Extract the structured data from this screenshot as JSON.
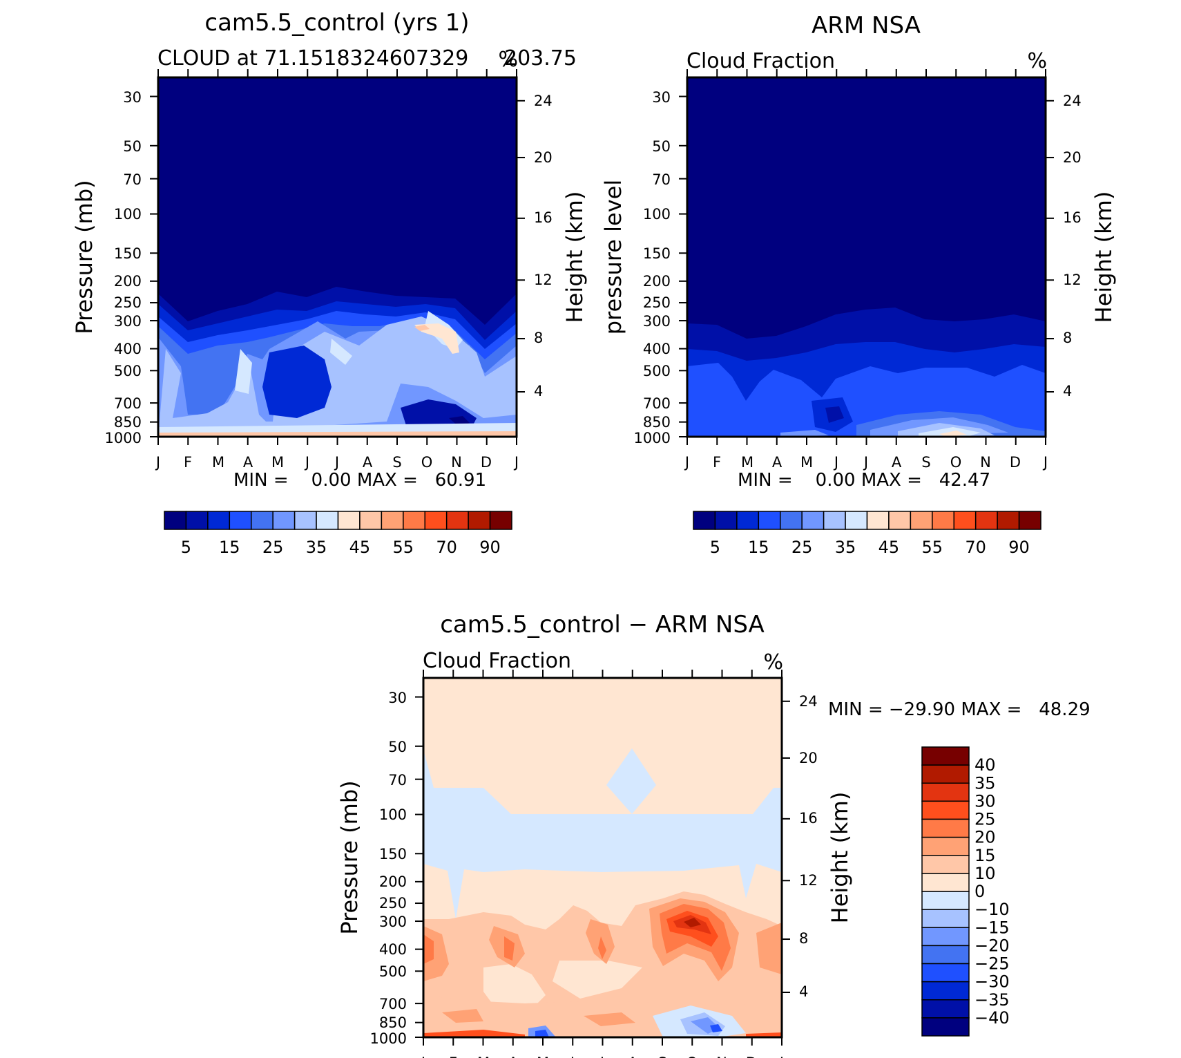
{
  "chart_data": [
    {
      "type": "heatmap",
      "id": "model",
      "title": "cam5.5_control (yrs 1)",
      "subtitle_left": "CLOUD at 71.1518324607329",
      "subtitle_right": "%",
      "subtitle_extra": "203.75",
      "ylabel": "Pressure (mb)",
      "ylabel_right": "Height (km)",
      "xticks": [
        "J",
        "F",
        "M",
        "A",
        "M",
        "J",
        "J",
        "A",
        "S",
        "O",
        "N",
        "D",
        "J"
      ],
      "yticks": [
        "30",
        "50",
        "70",
        "100",
        "150",
        "200",
        "250",
        "300",
        "400",
        "500",
        "700",
        "850",
        "1000"
      ],
      "height_ticks": [
        "24",
        "20",
        "16",
        "12",
        "8",
        "4"
      ],
      "stats": "MIN =    0.00 MAX =   60.91",
      "colorbar": {
        "colors": [
          "#00007f",
          "#0010a8",
          "#0029d5",
          "#1f50ff",
          "#4373f2",
          "#7197ff",
          "#a7c2ff",
          "#d5e8ff",
          "#ffe6d2",
          "#ffc7a8",
          "#ffa275",
          "#ff7a47",
          "#ff4f1d",
          "#e33411",
          "#b11a00",
          "#770000"
        ],
        "labels": [
          "5",
          "15",
          "25",
          "35",
          "45",
          "55",
          "70",
          "90"
        ]
      }
    },
    {
      "type": "heatmap",
      "id": "obs",
      "title": "ARM NSA",
      "subtitle_left": "Cloud Fraction",
      "subtitle_right": "%",
      "ylabel": "pressure level",
      "ylabel_right": "Height (km)",
      "xticks": [
        "J",
        "F",
        "M",
        "A",
        "M",
        "J",
        "J",
        "A",
        "S",
        "O",
        "N",
        "D",
        "J"
      ],
      "yticks": [
        "30",
        "50",
        "70",
        "100",
        "150",
        "200",
        "250",
        "300",
        "400",
        "500",
        "700",
        "850",
        "1000"
      ],
      "height_ticks": [
        "24",
        "20",
        "16",
        "12",
        "8",
        "4"
      ],
      "stats": "MIN =    0.00 MAX =   42.47",
      "colorbar": {
        "colors": [
          "#00007f",
          "#0010a8",
          "#0029d5",
          "#1f50ff",
          "#4373f2",
          "#7197ff",
          "#a7c2ff",
          "#d5e8ff",
          "#ffe6d2",
          "#ffc7a8",
          "#ffa275",
          "#ff7a47",
          "#ff4f1d",
          "#e33411",
          "#b11a00",
          "#770000"
        ],
        "labels": [
          "5",
          "15",
          "25",
          "35",
          "45",
          "55",
          "70",
          "90"
        ]
      }
    },
    {
      "type": "heatmap",
      "id": "diff",
      "title": "cam5.5_control − ARM NSA",
      "subtitle_left": "Cloud Fraction",
      "subtitle_right": "%",
      "ylabel": "Pressure (mb)",
      "ylabel_right": "Height (km)",
      "xticks": [
        "J",
        "F",
        "M",
        "A",
        "M",
        "J",
        "J",
        "A",
        "S",
        "O",
        "N",
        "D",
        "J"
      ],
      "yticks": [
        "30",
        "50",
        "70",
        "100",
        "150",
        "200",
        "250",
        "300",
        "400",
        "500",
        "700",
        "850",
        "1000"
      ],
      "height_ticks": [
        "24",
        "20",
        "16",
        "12",
        "8",
        "4"
      ],
      "stats": "MIN = −29.90 MAX =   48.29",
      "colorbar": {
        "colors": [
          "#770000",
          "#b11a00",
          "#e33411",
          "#ff4f1d",
          "#ff7a47",
          "#ffa275",
          "#ffc7a8",
          "#ffe6d2",
          "#d5e8ff",
          "#a7c2ff",
          "#7197ff",
          "#4373f2",
          "#1f50ff",
          "#0029d5",
          "#0010a8",
          "#00007f"
        ],
        "labels": [
          "40",
          "35",
          "30",
          "25",
          "20",
          "15",
          "10",
          "0",
          "−10",
          "−15",
          "−20",
          "−25",
          "−30",
          "−35",
          "−40"
        ]
      }
    }
  ]
}
